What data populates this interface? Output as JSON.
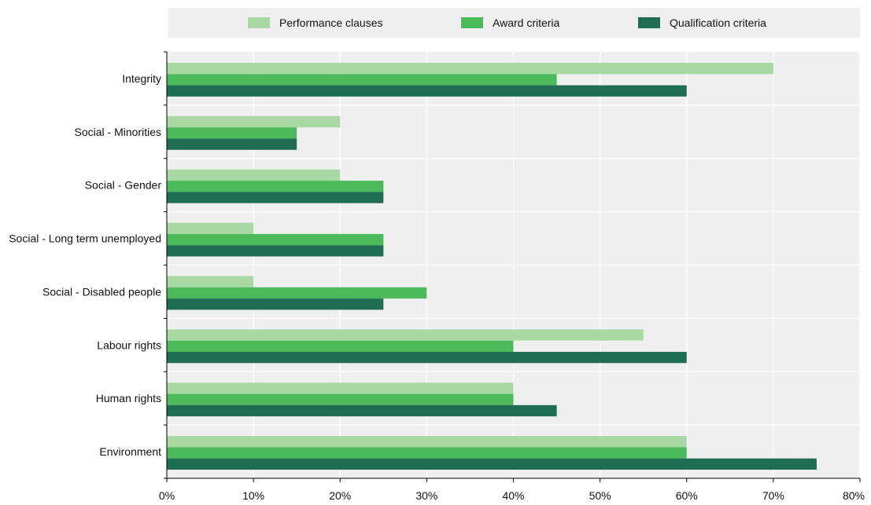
{
  "chart_data": {
    "type": "bar",
    "orientation": "horizontal",
    "title": "",
    "xlabel": "",
    "ylabel": "",
    "categories": [
      "Integrity",
      "Social - Minorities",
      "Social - Gender",
      "Social - Long term unemployed",
      "Social - Disabled people",
      "Labour rights",
      "Human rights",
      "Environment"
    ],
    "series": [
      {
        "name": "Performance clauses",
        "color": "#a9d9a3",
        "values": [
          70,
          20,
          20,
          10,
          10,
          55,
          40,
          60
        ]
      },
      {
        "name": "Award criteria",
        "color": "#4cba5a",
        "values": [
          45,
          15,
          25,
          25,
          30,
          40,
          40,
          60
        ]
      },
      {
        "name": "Qualification criteria",
        "color": "#1f6e54",
        "values": [
          60,
          15,
          25,
          25,
          25,
          60,
          45,
          75
        ]
      }
    ],
    "xlim": [
      0,
      80
    ],
    "x_ticks": [
      0,
      10,
      20,
      30,
      40,
      50,
      60,
      70,
      80
    ],
    "x_tick_labels": [
      "0%",
      "10%",
      "20%",
      "30%",
      "40%",
      "50%",
      "60%",
      "70%",
      "80%"
    ],
    "grid": true,
    "legend_position": "top"
  }
}
